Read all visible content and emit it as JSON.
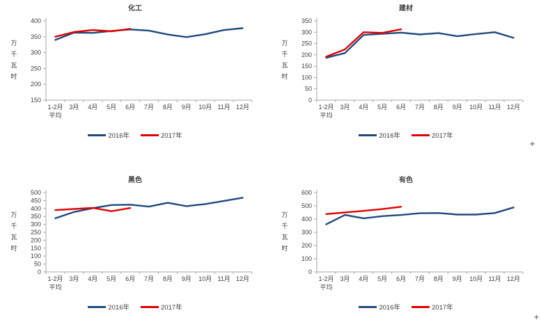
{
  "axis": {
    "line_color": "#A6A6A6",
    "text_color": "#404040"
  },
  "artifacts": {
    "plus_cursor_glyph": "+"
  },
  "chart_data": [
    {
      "type": "line",
      "title": "化工",
      "ylabel": "万千瓦时",
      "categories": [
        "1-2月",
        "3月",
        "4月",
        "5月",
        "6月",
        "7月",
        "8月",
        "9月",
        "10月",
        "11月",
        "12月"
      ],
      "first_category_line2": "平均",
      "ylim": [
        150,
        400
      ],
      "ytick_step": 50,
      "grid": false,
      "legend_position": "bottom",
      "series": [
        {
          "name": "2016年",
          "color": "#1F497D",
          "values": [
            340,
            363,
            362,
            368,
            373,
            369,
            357,
            349,
            358,
            371,
            377
          ]
        },
        {
          "name": "2017年",
          "color": "#E00000",
          "values": [
            350,
            365,
            371,
            367,
            375
          ]
        }
      ]
    },
    {
      "type": "line",
      "title": "建材",
      "ylabel": "万千瓦时",
      "categories": [
        "1-2月",
        "3月",
        "4月",
        "5月",
        "6月",
        "7月",
        "8月",
        "9月",
        "10月",
        "11月",
        "12月"
      ],
      "first_category_line2": "平均",
      "ylim": [
        0,
        350
      ],
      "ytick_step": 50,
      "grid": false,
      "legend_position": "bottom",
      "series": [
        {
          "name": "2016年",
          "color": "#1F497D",
          "values": [
            187,
            208,
            288,
            293,
            298,
            290,
            296,
            282,
            292,
            300,
            275
          ]
        },
        {
          "name": "2017年",
          "color": "#E00000",
          "values": [
            192,
            224,
            300,
            297,
            313
          ]
        }
      ]
    },
    {
      "type": "line",
      "title": "黑色",
      "ylabel": "万千瓦时",
      "categories": [
        "1-2月",
        "3月",
        "4月",
        "5月",
        "6月",
        "7月",
        "8月",
        "9月",
        "10月",
        "11月",
        "12月"
      ],
      "first_category_line2": "平均",
      "ylim": [
        0,
        500
      ],
      "ytick_step": 50,
      "grid": false,
      "legend_position": "bottom",
      "series": [
        {
          "name": "2016年",
          "color": "#1F497D",
          "values": [
            338,
            378,
            402,
            422,
            424,
            412,
            436,
            415,
            428,
            448,
            468
          ]
        },
        {
          "name": "2017年",
          "color": "#E00000",
          "values": [
            390,
            397,
            404,
            383,
            403
          ]
        }
      ]
    },
    {
      "type": "line",
      "title": "有色",
      "ylabel": "万千瓦时",
      "categories": [
        "1-2月",
        "3月",
        "4月",
        "5月",
        "6月",
        "7月",
        "8月",
        "9月",
        "10月",
        "11月",
        "12月"
      ],
      "first_category_line2": "平均",
      "ylim": [
        0,
        600
      ],
      "ytick_step": 100,
      "grid": false,
      "legend_position": "bottom",
      "series": [
        {
          "name": "2016年",
          "color": "#1F497D",
          "values": [
            360,
            431,
            406,
            422,
            431,
            444,
            446,
            434,
            434,
            446,
            488
          ]
        },
        {
          "name": "2017年",
          "color": "#E00000",
          "values": [
            438,
            450,
            462,
            476,
            493
          ]
        }
      ]
    }
  ]
}
